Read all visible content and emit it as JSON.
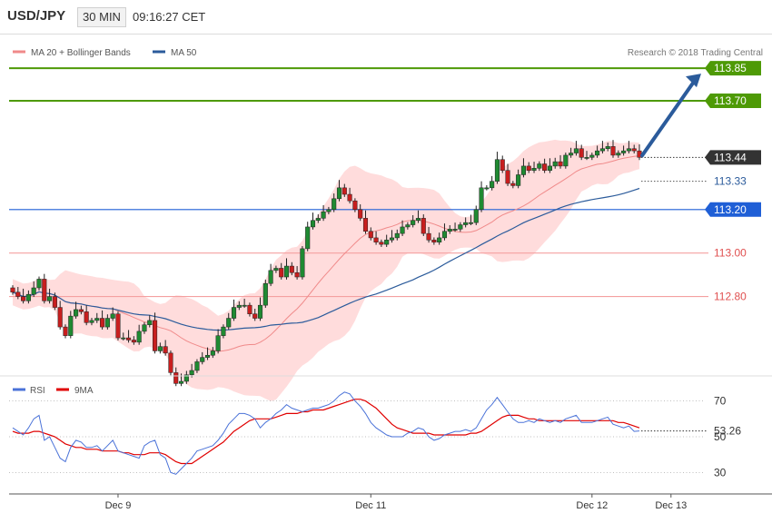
{
  "header": {
    "symbol": "USD/JPY",
    "timeframe": "30 MIN",
    "time": "09:16:27 CET"
  },
  "chart_data": [
    {
      "type": "candlestick",
      "legend": [
        "MA 20 + Bollinger Bands",
        "MA 50"
      ],
      "credit": "Research © 2018 Trading Central",
      "ylim": [
        112.46,
        113.98
      ],
      "levels": [
        {
          "value": 113.85,
          "label": "113.85",
          "color": "#4e9a06",
          "style": "solid-green"
        },
        {
          "value": 113.7,
          "label": "113.70",
          "color": "#4e9a06",
          "style": "solid-green"
        },
        {
          "value": 113.44,
          "label": "113.44",
          "color": "#333333",
          "style": "last-price"
        },
        {
          "value": 113.33,
          "label": "113.33",
          "color": "#2b5b9b",
          "style": "ma50-value"
        },
        {
          "value": 113.2,
          "label": "113.20",
          "color": "#1f5fd6",
          "style": "pivot"
        },
        {
          "value": 113.0,
          "label": "113.00",
          "color": "#e05050",
          "style": "support"
        },
        {
          "value": 112.8,
          "label": "112.80",
          "color": "#e05050",
          "style": "support"
        }
      ],
      "x_labels": [
        "Dec 9",
        "Dec 11",
        "Dec 12",
        "Dec 13"
      ],
      "x_label_index": [
        20,
        68,
        110,
        125
      ],
      "arrow_target": 113.85,
      "closes": [
        112.82,
        112.8,
        112.78,
        112.81,
        112.84,
        112.88,
        112.78,
        112.8,
        112.75,
        112.66,
        112.62,
        112.71,
        112.74,
        112.73,
        112.68,
        112.69,
        112.7,
        112.66,
        112.7,
        112.72,
        112.61,
        112.61,
        112.6,
        112.59,
        112.64,
        112.67,
        112.69,
        112.55,
        112.57,
        112.54,
        112.45,
        112.4,
        112.41,
        112.44,
        112.46,
        112.5,
        112.52,
        112.53,
        112.55,
        112.62,
        112.66,
        112.7,
        112.75,
        112.76,
        112.76,
        112.72,
        112.7,
        112.76,
        112.86,
        112.92,
        112.93,
        112.89,
        112.94,
        112.91,
        112.89,
        113.02,
        113.12,
        113.15,
        113.16,
        113.19,
        113.2,
        113.25,
        113.3,
        113.27,
        113.24,
        113.2,
        113.16,
        113.1,
        113.07,
        113.05,
        113.04,
        113.06,
        113.07,
        113.09,
        113.12,
        113.13,
        113.15,
        113.16,
        113.09,
        113.06,
        113.05,
        113.07,
        113.1,
        113.11,
        113.11,
        113.13,
        113.14,
        113.14,
        113.2,
        113.3,
        113.3,
        113.33,
        113.43,
        113.38,
        113.32,
        113.31,
        113.36,
        113.4,
        113.38,
        113.39,
        113.41,
        113.38,
        113.4,
        113.42,
        113.4,
        113.45,
        113.46,
        113.48,
        113.44,
        113.44,
        113.45,
        113.47,
        113.48,
        113.49,
        113.45,
        113.46,
        113.47,
        113.48,
        113.47,
        113.44
      ]
    },
    {
      "type": "line",
      "legend": [
        "RSI",
        "9MA"
      ],
      "ylim": [
        19,
        81
      ],
      "y_ticks": [
        70,
        50,
        30
      ],
      "current_value": 53.26,
      "rsi_value_label": "53.26",
      "rsi": [
        55,
        53,
        51,
        55,
        60,
        62,
        48,
        50,
        44,
        38,
        36,
        44,
        48,
        47,
        44,
        44,
        45,
        42,
        45,
        48,
        42,
        41,
        40,
        39,
        38,
        45,
        47,
        48,
        40,
        38,
        30,
        29,
        32,
        35,
        38,
        42,
        43,
        44,
        45,
        48,
        52,
        57,
        60,
        63,
        63,
        62,
        60,
        55,
        58,
        60,
        63,
        65,
        68,
        66,
        65,
        64,
        65,
        66,
        66,
        67,
        68,
        70,
        73,
        75,
        74,
        70,
        67,
        63,
        58,
        55,
        53,
        51,
        50,
        50,
        50,
        52,
        53,
        55,
        54,
        50,
        48,
        49,
        51,
        52,
        53,
        53,
        54,
        53,
        55,
        60,
        65,
        68,
        72,
        68,
        64,
        60,
        58,
        58,
        59,
        58,
        60,
        59,
        58,
        59,
        58,
        60,
        61,
        62,
        58,
        58,
        58,
        59,
        60,
        61,
        57,
        56,
        55,
        56,
        53,
        53.26
      ],
      "ma9": [
        53,
        52,
        52,
        52,
        53,
        53,
        52,
        51,
        50,
        48,
        46,
        45,
        44,
        44,
        43,
        43,
        43,
        42,
        42,
        42,
        42,
        41,
        41,
        40,
        40,
        40,
        41,
        41,
        41,
        40,
        38,
        36,
        35,
        35,
        35,
        37,
        39,
        41,
        43,
        45,
        47,
        50,
        53,
        55,
        57,
        59,
        60,
        60,
        60,
        60,
        61,
        62,
        63,
        63,
        63,
        64,
        64,
        65,
        65,
        65,
        66,
        67,
        68,
        69,
        70,
        71,
        71,
        70,
        68,
        66,
        63,
        60,
        57,
        55,
        54,
        53,
        52,
        52,
        52,
        52,
        51,
        51,
        51,
        51,
        51,
        51,
        51,
        52,
        52,
        53,
        55,
        57,
        59,
        61,
        62,
        62,
        62,
        61,
        60,
        60,
        59,
        59,
        59,
        59,
        59,
        59,
        59,
        59,
        59,
        59,
        59,
        59,
        59,
        59,
        59,
        58,
        58,
        57,
        56,
        55
      ]
    }
  ]
}
